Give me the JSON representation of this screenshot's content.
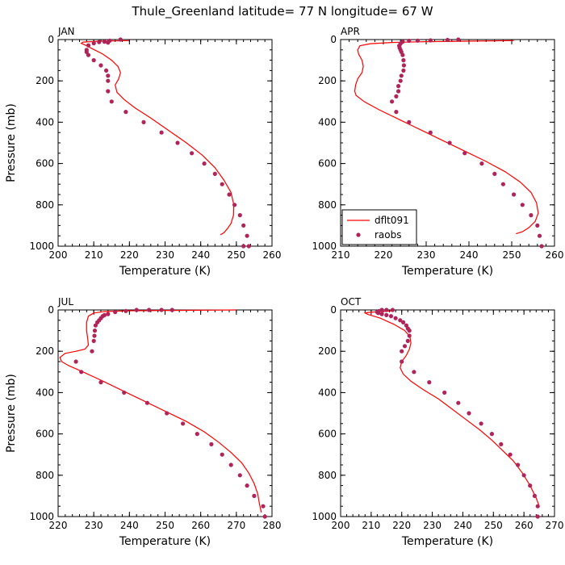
{
  "title": "Thule_Greenland  latitude= 77 N longitude= 67 W",
  "colors": {
    "model": "#ff0000",
    "obs": "#b0245a"
  },
  "chart_data": [
    {
      "type": "line",
      "panel": "JAN",
      "title": "JAN",
      "xlabel": "Temperature (K)",
      "ylabel": "Pressure (mb)",
      "xlim": [
        200,
        260
      ],
      "ylim": [
        1000,
        0
      ],
      "xticks": [
        "200",
        "210",
        "220",
        "230",
        "240",
        "250",
        "260"
      ],
      "yticks": [
        "0",
        "200",
        "400",
        "600",
        "800",
        "1000"
      ],
      "show_ylabel": true,
      "show_legend": false,
      "series": [
        {
          "name": "dflt091",
          "kind": "line",
          "x": [
            220,
            212,
            207,
            206.5,
            208,
            210,
            212.5,
            215,
            216.8,
            217.5,
            217,
            216,
            216.5,
            218.5,
            221.5,
            226,
            231,
            236,
            240.5,
            244,
            246.5,
            248.5,
            249.3,
            249.2,
            248.5,
            247.5,
            246.5,
            245.5
          ],
          "y": [
            5,
            8,
            12,
            18,
            30,
            48,
            70,
            100,
            130,
            160,
            190,
            220,
            255,
            290,
            330,
            380,
            440,
            500,
            560,
            620,
            680,
            740,
            800,
            850,
            890,
            915,
            935,
            945
          ]
        },
        {
          "name": "raobs",
          "kind": "scatter",
          "x": [
            217.5,
            214.5,
            214,
            213,
            211.5,
            210,
            208.5,
            208,
            208,
            208.5,
            210,
            212,
            213.5,
            214,
            214,
            214,
            215,
            219,
            224,
            229,
            233.5,
            237.5,
            241,
            244,
            246,
            248,
            249.5,
            251,
            252,
            253,
            253.5,
            252
          ],
          "y": [
            0,
            5,
            15,
            10,
            12,
            18,
            28,
            50,
            60,
            75,
            100,
            125,
            150,
            175,
            200,
            250,
            300,
            350,
            400,
            450,
            500,
            550,
            600,
            650,
            700,
            750,
            800,
            850,
            900,
            950,
            1000,
            1000
          ]
        }
      ]
    },
    {
      "type": "line",
      "panel": "APR",
      "title": "APR",
      "xlabel": "Temperature (K)",
      "ylabel": "",
      "xlim": [
        210,
        260
      ],
      "ylim": [
        1000,
        0
      ],
      "xticks": [
        "210",
        "220",
        "230",
        "240",
        "250",
        "260"
      ],
      "yticks": [
        "0",
        "200",
        "400",
        "600",
        "800",
        "1000"
      ],
      "show_ylabel": false,
      "show_legend": true,
      "legend": [
        "dflt091",
        "raobs"
      ],
      "series": [
        {
          "name": "dflt091",
          "kind": "line",
          "x": [
            250.5,
            240,
            230,
            222,
            217,
            214.5,
            214,
            214.2,
            215,
            215.3,
            215,
            214,
            213.5,
            213.3,
            213.6,
            215.5,
            219,
            224,
            229,
            234,
            239,
            244,
            248.5,
            252,
            254.5,
            255.8,
            256.2,
            255.5,
            254,
            252.5,
            251
          ],
          "y": [
            5,
            8,
            10,
            14,
            20,
            30,
            50,
            70,
            100,
            130,
            160,
            190,
            220,
            250,
            270,
            300,
            340,
            390,
            440,
            490,
            540,
            590,
            640,
            690,
            740,
            790,
            840,
            880,
            910,
            930,
            940
          ]
        },
        {
          "name": "raobs",
          "kind": "scatter",
          "x": [
            237.5,
            235,
            231,
            228,
            226,
            224.5,
            224,
            223.7,
            223.8,
            224,
            224.2,
            224.5,
            224.7,
            224.8,
            224.7,
            224.2,
            224,
            223.5,
            223.5,
            223,
            222,
            223,
            226,
            231,
            235.5,
            239,
            243,
            246,
            248,
            250.5,
            252.5,
            254.5,
            256,
            256.5,
            257
          ],
          "y": [
            0,
            2,
            4,
            5,
            6,
            10,
            20,
            30,
            40,
            50,
            60,
            75,
            100,
            125,
            150,
            175,
            200,
            225,
            250,
            275,
            300,
            350,
            400,
            450,
            500,
            550,
            600,
            650,
            700,
            750,
            800,
            850,
            900,
            950,
            1000
          ]
        }
      ]
    },
    {
      "type": "line",
      "panel": "JUL",
      "title": "JUL",
      "xlabel": "Temperature (K)",
      "ylabel": "Pressure (mb)",
      "xlim": [
        220,
        280
      ],
      "ylim": [
        1000,
        0
      ],
      "xticks": [
        "220",
        "230",
        "240",
        "250",
        "260",
        "270",
        "280"
      ],
      "yticks": [
        "0",
        "200",
        "400",
        "600",
        "800",
        "1000"
      ],
      "show_ylabel": true,
      "show_legend": false,
      "series": [
        {
          "name": "dflt091",
          "kind": "line",
          "x": [
            270,
            255,
            240,
            233,
            230,
            228.5,
            228,
            228,
            228.3,
            228.5,
            227.5,
            225,
            222,
            220.5,
            221,
            223,
            227,
            232,
            238,
            244,
            250,
            256,
            261,
            265,
            268.5,
            271.5,
            273.5,
            275,
            276,
            276.5,
            277
          ],
          "y": [
            0,
            2,
            4,
            8,
            15,
            30,
            60,
            100,
            140,
            170,
            190,
            200,
            210,
            230,
            250,
            270,
            300,
            340,
            390,
            440,
            490,
            540,
            590,
            640,
            690,
            740,
            790,
            840,
            890,
            940,
            980
          ]
        },
        {
          "name": "raobs",
          "kind": "scatter",
          "x": [
            252,
            249,
            245.5,
            242,
            239,
            236,
            234,
            233,
            232.5,
            232,
            231.5,
            231,
            230.5,
            230.3,
            230.2,
            230,
            229.5,
            225,
            226.5,
            232,
            238.5,
            245,
            250.5,
            255,
            259,
            263,
            266,
            268.5,
            271,
            273,
            275,
            277.5,
            278
          ],
          "y": [
            0,
            0,
            0,
            0,
            5,
            10,
            20,
            25,
            30,
            40,
            50,
            60,
            75,
            100,
            125,
            150,
            200,
            250,
            300,
            350,
            400,
            450,
            500,
            550,
            600,
            650,
            700,
            750,
            800,
            850,
            900,
            950,
            1000
          ]
        }
      ]
    },
    {
      "type": "line",
      "panel": "OCT",
      "title": "OCT",
      "xlabel": "Temperature (K)",
      "ylabel": "",
      "xlim": [
        200,
        270
      ],
      "ylim": [
        1000,
        0
      ],
      "xticks": [
        "200",
        "210",
        "220",
        "230",
        "240",
        "250",
        "260",
        "270"
      ],
      "yticks": [
        "0",
        "200",
        "400",
        "600",
        "800",
        "1000"
      ],
      "show_ylabel": false,
      "show_legend": false,
      "series": [
        {
          "name": "dflt091",
          "kind": "line",
          "x": [
            217,
            213,
            209,
            208,
            209,
            213,
            217.5,
            221,
            222.7,
            223,
            222.5,
            221.5,
            220,
            219.5,
            220.5,
            223,
            227,
            232,
            236.5,
            241,
            245.5,
            249.5,
            253,
            256.5,
            259.5,
            262,
            264,
            265
          ],
          "y": [
            5,
            8,
            12,
            15,
            22,
            40,
            70,
            100,
            130,
            160,
            190,
            220,
            250,
            280,
            310,
            345,
            385,
            430,
            480,
            530,
            580,
            630,
            680,
            730,
            790,
            850,
            910,
            950
          ]
        },
        {
          "name": "raobs",
          "kind": "scatter",
          "x": [
            217,
            215,
            213.5,
            212.5,
            212,
            212.3,
            213.5,
            215,
            216.5,
            218,
            219.5,
            220.5,
            221.5,
            222,
            222.5,
            222.5,
            222,
            221,
            220,
            220,
            224,
            229,
            234,
            238.5,
            242,
            246,
            249.5,
            252.5,
            255.5,
            258,
            260,
            262,
            263.5,
            264.5,
            264.5
          ],
          "y": [
            0,
            0,
            0,
            5,
            10,
            15,
            20,
            25,
            30,
            40,
            50,
            60,
            75,
            90,
            100,
            125,
            150,
            175,
            200,
            250,
            300,
            350,
            400,
            450,
            500,
            550,
            600,
            650,
            700,
            750,
            800,
            850,
            900,
            950,
            1000
          ]
        }
      ]
    }
  ]
}
